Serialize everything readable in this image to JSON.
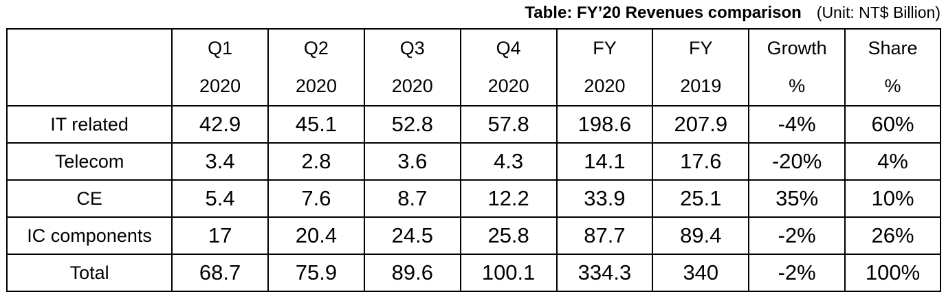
{
  "caption": {
    "title": "Table: FY’20 Revenues comparison",
    "unit": "(Unit: NT$ Billion)"
  },
  "chart_data": {
    "type": "table",
    "title": "Table: FY’20 Revenues comparison",
    "unit": "(Unit: NT$ Billion)",
    "columns": [
      {
        "line1": "Q1",
        "line2": "2020"
      },
      {
        "line1": "Q2",
        "line2": "2020"
      },
      {
        "line1": "Q3",
        "line2": "2020"
      },
      {
        "line1": "Q4",
        "line2": "2020"
      },
      {
        "line1": "FY",
        "line2": "2020"
      },
      {
        "line1": "FY",
        "line2": "2019"
      },
      {
        "line1": "Growth",
        "line2": "%"
      },
      {
        "line1": "Share",
        "line2": "%"
      }
    ],
    "rows": [
      {
        "label": "IT related",
        "values": [
          "42.9",
          "45.1",
          "52.8",
          "57.8",
          "198.6",
          "207.9",
          "-4%",
          "60%"
        ]
      },
      {
        "label": "Telecom",
        "values": [
          "3.4",
          "2.8",
          "3.6",
          "4.3",
          "14.1",
          "17.6",
          "-20%",
          "4%"
        ]
      },
      {
        "label": "CE",
        "values": [
          "5.4",
          "7.6",
          "8.7",
          "12.2",
          "33.9",
          "25.1",
          "35%",
          "10%"
        ]
      },
      {
        "label": "IC components",
        "values": [
          "17",
          "20.4",
          "24.5",
          "25.8",
          "87.7",
          "89.4",
          "-2%",
          "26%"
        ]
      },
      {
        "label": "Total",
        "values": [
          "68.7",
          "75.9",
          "89.6",
          "100.1",
          "334.3",
          "340",
          "-2%",
          "100%"
        ]
      }
    ]
  }
}
